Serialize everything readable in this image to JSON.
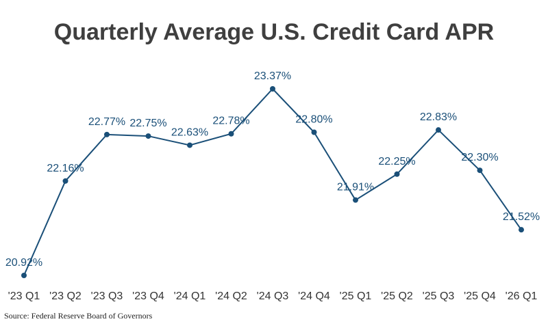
{
  "chart_data": {
    "type": "line",
    "title": "Quarterly Average U.S. Credit Card APR",
    "categories": [
      "'23 Q1",
      "'23 Q2",
      "'23 Q3",
      "'23 Q4",
      "'24 Q1",
      "'24 Q2",
      "'24 Q3",
      "'24 Q4",
      "'25 Q1",
      "'25 Q2",
      "'25 Q3",
      "'25 Q4",
      "'26 Q1"
    ],
    "values": [
      20.92,
      22.16,
      22.77,
      22.75,
      22.63,
      22.78,
      23.37,
      22.8,
      21.91,
      22.25,
      22.83,
      22.3,
      21.52
    ],
    "value_labels": [
      "20.92%",
      "22.16%",
      "22.77%",
      "22.75%",
      "22.63%",
      "22.78%",
      "23.37%",
      "22.80%",
      "21.91%",
      "22.25%",
      "22.83%",
      "22.30%",
      "21.52%"
    ],
    "xlabel": "",
    "ylabel": "",
    "grid": false,
    "line_color": "#1a4f78"
  },
  "source": "Source: Federal Reserve Board of Governors"
}
